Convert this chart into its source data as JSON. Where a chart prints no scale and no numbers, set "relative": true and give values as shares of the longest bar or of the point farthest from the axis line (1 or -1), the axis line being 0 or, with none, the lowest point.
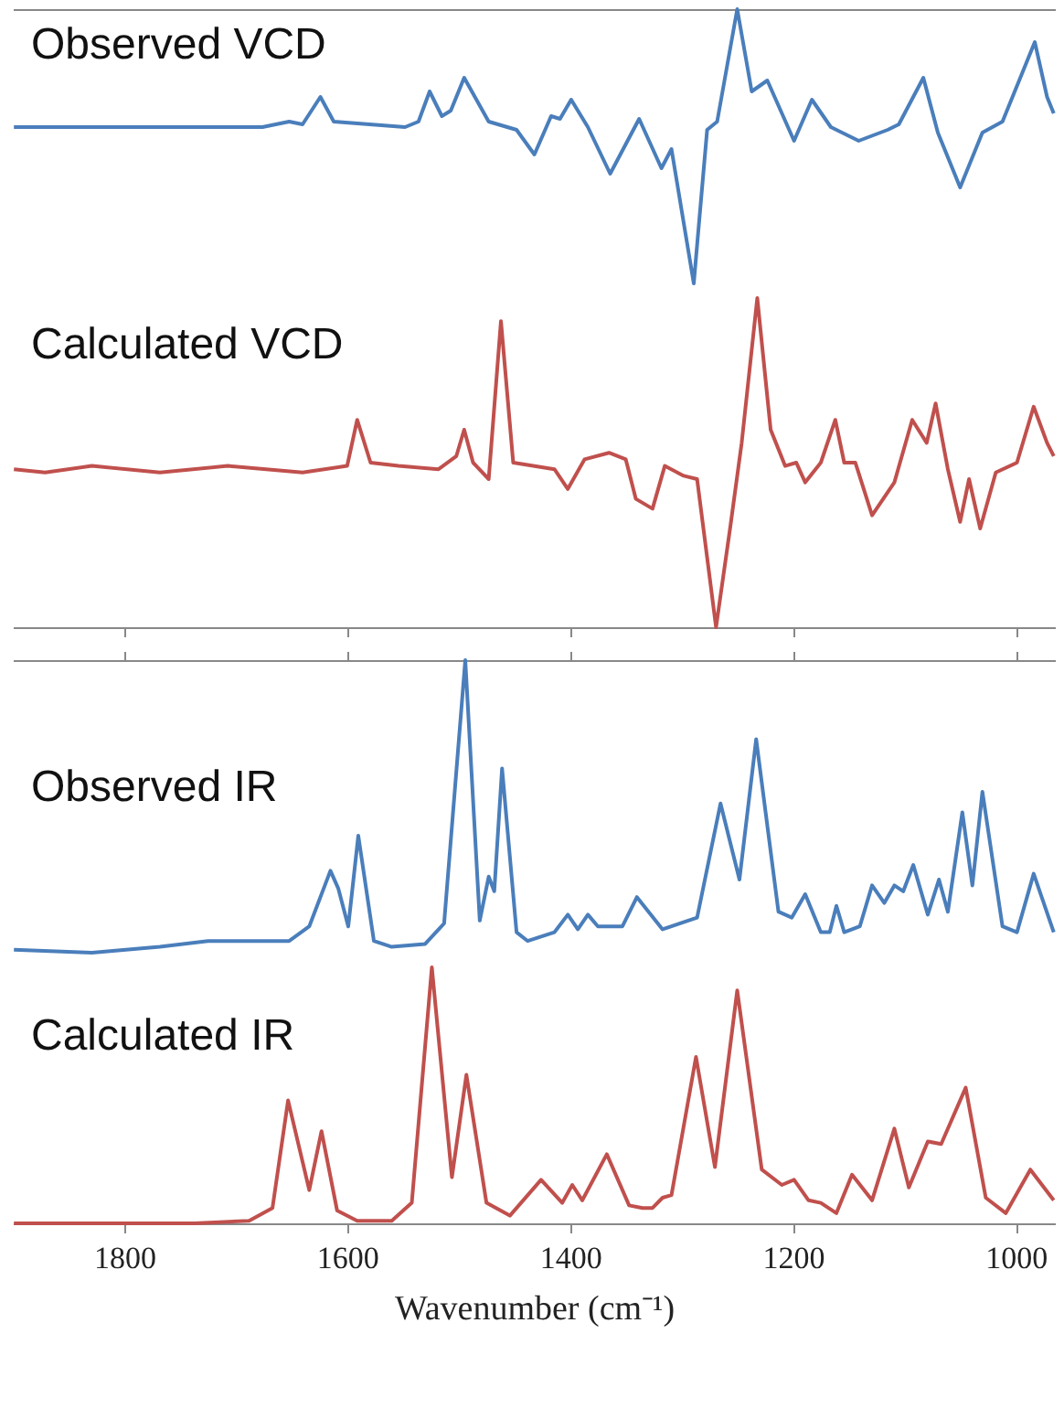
{
  "chart_data": [
    {
      "type": "line",
      "relative": true,
      "xlim": [
        1900,
        965
      ],
      "tick_labels": false,
      "x": [
        1899,
        1676,
        1652,
        1640,
        1624,
        1612,
        1548,
        1536,
        1526,
        1515,
        1507,
        1495,
        1473,
        1448,
        1432,
        1417,
        1409,
        1399,
        1384,
        1364,
        1338,
        1318,
        1309,
        1289,
        1277,
        1268,
        1250,
        1237,
        1223,
        1199,
        1183,
        1166,
        1141,
        1115,
        1105,
        1083,
        1070,
        1050,
        1030,
        1012,
        983,
        972,
        966
      ],
      "series": [
        {
          "name": "Observed VCD",
          "color": "#4a7ebb",
          "values": [
            0.57,
            0.57,
            0.59,
            0.58,
            0.68,
            0.59,
            0.57,
            0.59,
            0.7,
            0.61,
            0.63,
            0.75,
            0.59,
            0.56,
            0.47,
            0.61,
            0.6,
            0.67,
            0.57,
            0.4,
            0.6,
            0.42,
            0.49,
            0,
            0.56,
            0.59,
            1,
            0.7,
            0.74,
            0.52,
            0.67,
            0.57,
            0.52,
            0.56,
            0.58,
            0.75,
            0.55,
            0.35,
            0.55,
            0.59,
            0.88,
            0.68,
            0.62
          ]
        }
      ]
    },
    {
      "type": "line",
      "relative": true,
      "xlim": [
        1900,
        965
      ],
      "xticks": [
        1800,
        1600,
        1400,
        1200,
        1000
      ],
      "tick_labels": false,
      "x": [
        1899,
        1871,
        1829,
        1768,
        1707,
        1640,
        1600,
        1591,
        1579,
        1554,
        1518,
        1502,
        1495,
        1487,
        1473,
        1462,
        1451,
        1414,
        1402,
        1387,
        1365,
        1350,
        1341,
        1326,
        1315,
        1298,
        1286,
        1269,
        1256,
        1246,
        1232,
        1220,
        1207,
        1197,
        1189,
        1175,
        1162,
        1154,
        1144,
        1129,
        1109,
        1093,
        1080,
        1072,
        1061,
        1050,
        1042,
        1032,
        1018,
        999,
        984,
        972,
        966
      ],
      "series": [
        {
          "name": "Calculated VCD",
          "color": "#c0504d",
          "values": [
            0.48,
            0.47,
            0.49,
            0.47,
            0.49,
            0.47,
            0.49,
            0.63,
            0.5,
            0.49,
            0.48,
            0.52,
            0.6,
            0.5,
            0.45,
            0.93,
            0.5,
            0.48,
            0.42,
            0.51,
            0.53,
            0.51,
            0.39,
            0.36,
            0.49,
            0.46,
            0.45,
            0,
            0.31,
            0.56,
            1,
            0.6,
            0.49,
            0.5,
            0.44,
            0.5,
            0.63,
            0.5,
            0.5,
            0.34,
            0.44,
            0.63,
            0.56,
            0.68,
            0.48,
            0.32,
            0.45,
            0.3,
            0.47,
            0.5,
            0.67,
            0.56,
            0.52
          ]
        }
      ]
    },
    {
      "type": "line",
      "relative": true,
      "xlim": [
        1900,
        965
      ],
      "xticks": [
        1800,
        1600,
        1400,
        1200,
        1000
      ],
      "tick_labels": false,
      "x": [
        1899,
        1829,
        1768,
        1725,
        1652,
        1634,
        1615,
        1608,
        1599,
        1590,
        1576,
        1560,
        1530,
        1513,
        1494,
        1481,
        1473,
        1468,
        1461,
        1448,
        1438,
        1414,
        1402,
        1393,
        1384,
        1375,
        1353,
        1340,
        1317,
        1286,
        1265,
        1248,
        1233,
        1213,
        1201,
        1189,
        1175,
        1167,
        1161,
        1154,
        1140,
        1129,
        1118,
        1109,
        1101,
        1092,
        1079,
        1069,
        1061,
        1048,
        1039,
        1030,
        1012,
        999,
        984,
        966
      ],
      "series": [
        {
          "name": "Observed IR",
          "color": "#4a7ebb",
          "values": [
            0.01,
            0,
            0.02,
            0.04,
            0.04,
            0.09,
            0.28,
            0.22,
            0.09,
            0.4,
            0.04,
            0.02,
            0.03,
            0.1,
            1,
            0.11,
            0.26,
            0.21,
            0.63,
            0.07,
            0.04,
            0.07,
            0.13,
            0.08,
            0.13,
            0.09,
            0.09,
            0.19,
            0.08,
            0.12,
            0.51,
            0.25,
            0.73,
            0.14,
            0.12,
            0.2,
            0.07,
            0.07,
            0.16,
            0.07,
            0.09,
            0.23,
            0.17,
            0.23,
            0.21,
            0.3,
            0.13,
            0.25,
            0.14,
            0.48,
            0.23,
            0.55,
            0.09,
            0.07,
            0.27,
            0.07
          ]
        }
      ]
    },
    {
      "type": "line",
      "relative": true,
      "xlim": [
        1900,
        965
      ],
      "xticks": [
        1800,
        1600,
        1400,
        1200,
        1000
      ],
      "tick_labels": "x",
      "xlabel": "Wavenumber (cm⁻¹)",
      "x": [
        1899,
        1737,
        1688,
        1667,
        1653,
        1634,
        1623,
        1609,
        1591,
        1560,
        1542,
        1524,
        1506,
        1493,
        1475,
        1454,
        1426,
        1407,
        1398,
        1389,
        1367,
        1347,
        1335,
        1326,
        1317,
        1309,
        1287,
        1270,
        1250,
        1228,
        1210,
        1199,
        1186,
        1175,
        1161,
        1147,
        1129,
        1109,
        1096,
        1079,
        1067,
        1045,
        1027,
        1009,
        987,
        966
      ],
      "series": [
        {
          "name": "Calculated IR",
          "color": "#c0504d",
          "values": [
            0,
            0,
            0.01,
            0.06,
            0.48,
            0.13,
            0.36,
            0.05,
            0.01,
            0.01,
            0.08,
            1,
            0.18,
            0.58,
            0.08,
            0.03,
            0.17,
            0.08,
            0.15,
            0.09,
            0.27,
            0.07,
            0.06,
            0.06,
            0.1,
            0.11,
            0.65,
            0.22,
            0.91,
            0.21,
            0.15,
            0.17,
            0.09,
            0.08,
            0.04,
            0.19,
            0.09,
            0.37,
            0.14,
            0.32,
            0.31,
            0.53,
            0.1,
            0.04,
            0.21,
            0.09
          ]
        }
      ]
    }
  ]
}
